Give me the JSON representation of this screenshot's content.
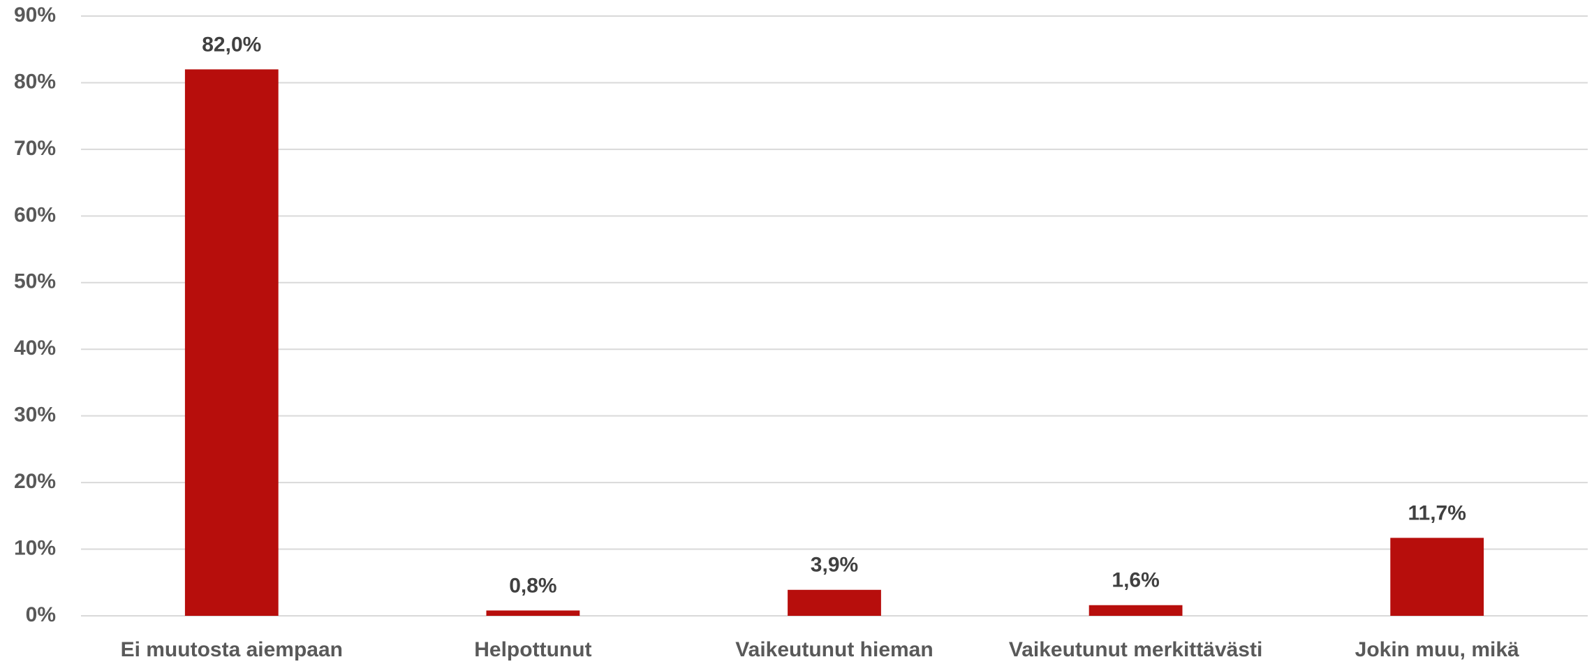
{
  "chart_data": {
    "type": "bar",
    "categories": [
      "Ei muutosta aiempaan",
      "Helpottunut",
      "Vaikeutunut hieman",
      "Vaikeutunut merkittävästi",
      "Jokin muu, mikä"
    ],
    "values": [
      82.0,
      0.8,
      3.9,
      1.6,
      11.7
    ],
    "value_labels": [
      "82,0%",
      "0,8%",
      "3,9%",
      "1,6%",
      "11,7%"
    ],
    "color": "#b70e0c",
    "ylim": [
      0,
      90
    ],
    "yticks": [
      {
        "value": 0,
        "label": "0%"
      },
      {
        "value": 10,
        "label": "10%"
      },
      {
        "value": 20,
        "label": "20%"
      },
      {
        "value": 30,
        "label": "30%"
      },
      {
        "value": 40,
        "label": "40%"
      },
      {
        "value": 50,
        "label": "50%"
      },
      {
        "value": 60,
        "label": "60%"
      },
      {
        "value": 70,
        "label": "70%"
      },
      {
        "value": 80,
        "label": "80%"
      },
      {
        "value": 90,
        "label": "90%"
      }
    ],
    "grid": true
  }
}
